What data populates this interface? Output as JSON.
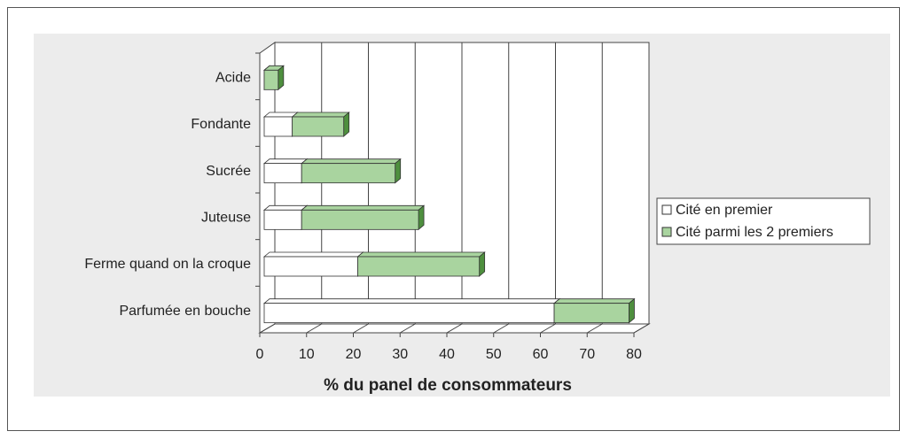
{
  "chart_data": {
    "type": "bar",
    "orientation": "horizontal",
    "stacked": true,
    "three_d": true,
    "x_label": "% du panel de consommateurs",
    "categories": [
      "Acide",
      "Fondante",
      "Sucrée",
      "Juteuse",
      "Ferme quand on la croque",
      "Parfumée en bouche"
    ],
    "series": [
      {
        "name": "Cité en premier",
        "color": "#ffffff",
        "values": [
          0,
          6,
          8,
          8,
          20,
          62
        ]
      },
      {
        "name": "Cité parmi les 2 premiers",
        "color": "#a9d49f",
        "values": [
          3,
          11,
          20,
          25,
          26,
          16
        ]
      }
    ],
    "xlim": [
      0,
      80
    ],
    "xticks": [
      0,
      10,
      20,
      30,
      40,
      50,
      60,
      70,
      80
    ],
    "grid": true,
    "legend": "right"
  }
}
